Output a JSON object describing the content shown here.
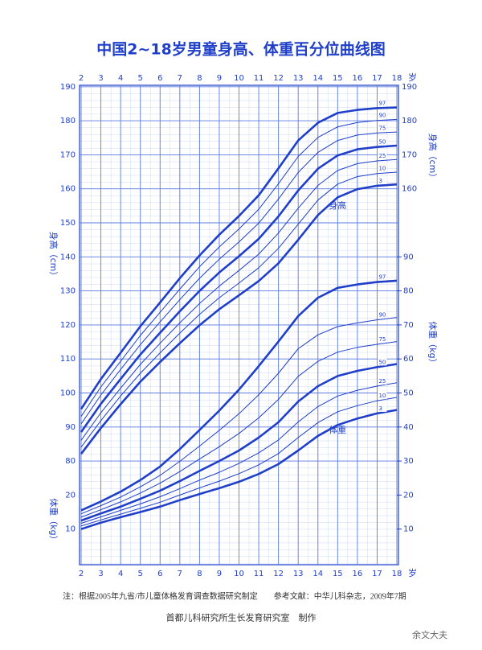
{
  "chart_data": {
    "type": "line",
    "title": "中国2~18岁男童身高、体重百分位曲线图",
    "x": [
      2,
      3,
      4,
      5,
      6,
      7,
      8,
      9,
      10,
      11,
      12,
      13,
      14,
      15,
      16,
      17,
      18
    ],
    "xlim": [
      2,
      18
    ],
    "xticks": [
      2,
      3,
      4,
      5,
      6,
      7,
      8,
      9,
      10,
      11,
      12,
      13,
      14,
      15,
      16,
      17,
      18
    ],
    "x_unit": "岁",
    "ylim": [
      50,
      190
    ],
    "yticks": [
      80,
      90,
      100,
      110,
      120,
      130,
      140,
      150,
      160,
      170,
      180,
      190
    ],
    "yticks_right": [
      160,
      170,
      180,
      190
    ],
    "y2lim": [
      0,
      140
    ],
    "y2ticks": [
      10,
      20,
      30,
      40,
      50,
      60,
      70,
      80,
      90
    ],
    "y2ticks_left": [
      10,
      20
    ],
    "y_label": "身高（cm）",
    "y2_label": "体重（kg）",
    "grid": true,
    "annotations": [
      {
        "text": "身高",
        "x": 15,
        "y": 155
      },
      {
        "text": "体重",
        "x": 15,
        "y": 89
      }
    ],
    "series": [
      {
        "name": "97",
        "color": "#1f3fc9",
        "width": 2.6,
        "values": [
          95.3,
          104.1,
          111.8,
          119.6,
          126.6,
          133.7,
          140.4,
          146.5,
          152.0,
          158.1,
          166.0,
          174.2,
          179.4,
          182.3,
          183.2,
          183.7,
          183.9
        ]
      },
      {
        "name": "90",
        "color": "#1f3fc9",
        "width": 1,
        "values": [
          93.1,
          101.8,
          109.3,
          116.9,
          123.7,
          130.5,
          137.1,
          142.9,
          148.2,
          154.0,
          161.5,
          169.5,
          175.1,
          178.2,
          179.5,
          180.1,
          180.4
        ]
      },
      {
        "name": "75",
        "color": "#1f3fc9",
        "width": 1,
        "values": [
          90.9,
          99.4,
          106.9,
          114.2,
          120.9,
          127.4,
          133.7,
          139.3,
          144.4,
          149.9,
          157.0,
          164.8,
          170.7,
          174.2,
          175.8,
          176.4,
          176.7
        ]
      },
      {
        "name": "50",
        "color": "#1f3fc9",
        "width": 2.6,
        "values": [
          88.5,
          96.8,
          104.1,
          111.3,
          117.7,
          124.0,
          130.0,
          135.4,
          140.2,
          145.3,
          151.9,
          159.5,
          165.9,
          169.8,
          171.6,
          172.3,
          172.7
        ]
      },
      {
        "name": "25",
        "color": "#1f3fc9",
        "width": 1,
        "values": [
          86.1,
          94.2,
          101.4,
          108.4,
          114.6,
          120.6,
          126.3,
          131.4,
          136.0,
          140.8,
          147.0,
          154.3,
          161.0,
          165.4,
          167.4,
          168.2,
          168.6
        ]
      },
      {
        "name": "10",
        "color": "#1f3fc9",
        "width": 1,
        "values": [
          84.1,
          91.9,
          99.1,
          105.8,
          111.8,
          117.6,
          123.1,
          128.0,
          132.3,
          136.8,
          142.5,
          149.6,
          156.7,
          161.4,
          163.6,
          164.5,
          164.9
        ]
      },
      {
        "name": "3",
        "color": "#1f3fc9",
        "width": 2.6,
        "values": [
          82.1,
          89.7,
          96.7,
          103.3,
          109.1,
          114.6,
          119.9,
          124.6,
          128.7,
          132.9,
          138.1,
          145.0,
          152.3,
          157.5,
          159.9,
          160.9,
          161.3
        ]
      },
      {
        "name": "97",
        "axis": "y2",
        "color": "#1f3fc9",
        "width": 2.6,
        "values": [
          15.5,
          18.1,
          21.0,
          24.4,
          28.4,
          33.5,
          39.1,
          44.8,
          51.0,
          57.9,
          65.1,
          72.6,
          78.0,
          80.9,
          81.9,
          82.6,
          83.0
        ]
      },
      {
        "name": "90",
        "axis": "y2",
        "color": "#1f3fc9",
        "width": 1,
        "values": [
          14.5,
          16.9,
          19.4,
          22.4,
          25.8,
          29.9,
          34.4,
          39.0,
          43.9,
          49.5,
          55.8,
          63.0,
          67.1,
          69.5,
          70.6,
          71.5,
          72.2
        ]
      },
      {
        "name": "75",
        "axis": "y2",
        "color": "#1f3fc9",
        "width": 1,
        "values": [
          13.5,
          15.7,
          18.0,
          20.6,
          23.5,
          26.9,
          30.6,
          34.2,
          38.1,
          42.7,
          48.1,
          54.9,
          59.3,
          62.0,
          63.4,
          64.3,
          65.1
        ]
      },
      {
        "name": "50",
        "axis": "y2",
        "color": "#1f3fc9",
        "width": 2.6,
        "values": [
          12.5,
          14.6,
          16.6,
          18.9,
          21.3,
          24.1,
          27.1,
          30.0,
          33.1,
          36.9,
          41.4,
          47.5,
          52.0,
          55.0,
          56.5,
          57.6,
          58.5
        ]
      },
      {
        "name": "25",
        "axis": "y2",
        "color": "#1f3fc9",
        "width": 1,
        "values": [
          11.7,
          13.6,
          15.5,
          17.4,
          19.5,
          21.9,
          24.4,
          26.7,
          29.3,
          32.4,
          36.2,
          41.5,
          46.0,
          49.1,
          50.8,
          52.0,
          53.0
        ]
      },
      {
        "name": "10",
        "axis": "y2",
        "color": "#1f3fc9",
        "width": 1,
        "values": [
          10.9,
          12.7,
          14.4,
          16.1,
          17.9,
          20.0,
          22.1,
          24.1,
          26.3,
          28.9,
          32.2,
          36.9,
          41.3,
          44.5,
          46.3,
          47.7,
          48.7
        ]
      },
      {
        "name": "3",
        "axis": "y2",
        "color": "#1f3fc9",
        "width": 2.6,
        "values": [
          10.0,
          11.9,
          13.5,
          15.0,
          16.6,
          18.5,
          20.3,
          22.0,
          23.9,
          26.2,
          29.1,
          33.1,
          37.4,
          40.6,
          42.5,
          44.0,
          45.0
        ]
      }
    ]
  },
  "footnote": "注：根据2005年九省/市儿童体格发育调查数据研究制定　　参考文献：中华儿科杂志，2009年7期",
  "credit": "首都儿科研究所生长发育研究室　制作",
  "watermark": "余文大夫"
}
